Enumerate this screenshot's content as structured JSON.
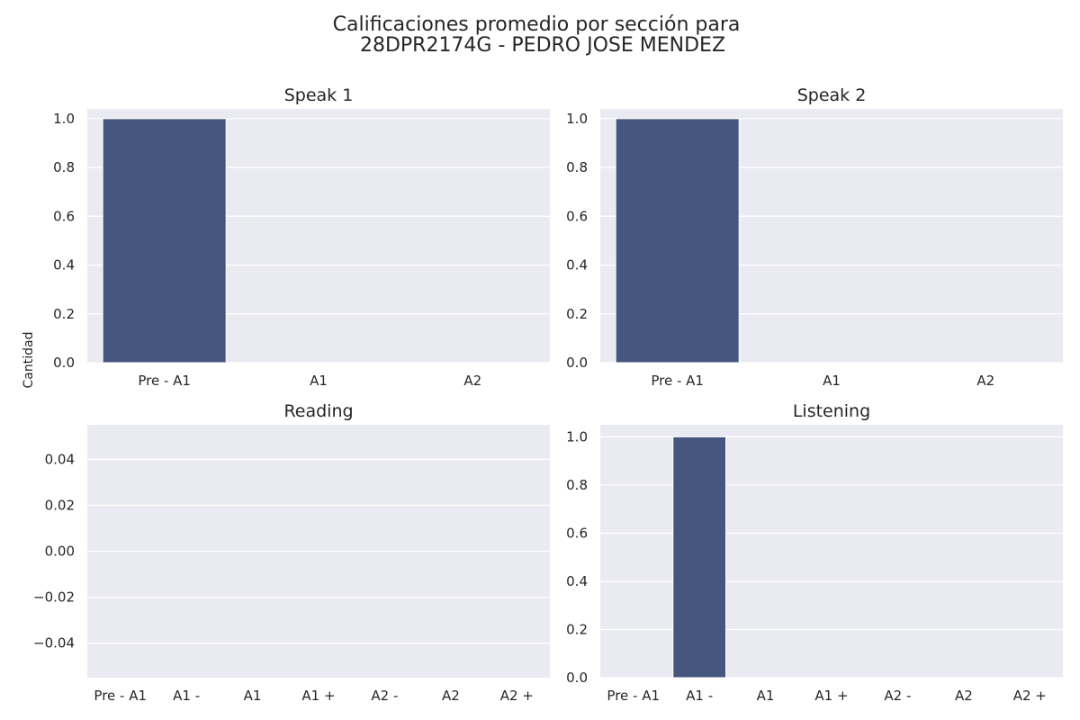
{
  "figure": {
    "title_line1": "Calificaciones promedio por sección para",
    "title_line2": "28DPR2174G - PEDRO JOSE MENDEZ",
    "ylabel": "Cantidad"
  },
  "colors": {
    "background": "#ffffff",
    "plot_area": "#eaeaf2",
    "grid": "#ffffff",
    "bar": "#45577f",
    "text": "#262626"
  },
  "chart_data": [
    {
      "type": "bar",
      "title": "Speak 1",
      "categories": [
        "Pre - A1",
        "A1",
        "A2"
      ],
      "values": [
        1,
        0,
        0
      ],
      "ylim": [
        0,
        1.04
      ],
      "yticks": [
        0.0,
        0.2,
        0.4,
        0.6,
        0.8,
        1.0
      ],
      "ytick_labels": [
        "0.0",
        "0.2",
        "0.4",
        "0.6",
        "0.8",
        "1.0"
      ],
      "grid": true
    },
    {
      "type": "bar",
      "title": "Speak 2",
      "categories": [
        "Pre - A1",
        "A1",
        "A2"
      ],
      "values": [
        1,
        0,
        0
      ],
      "ylim": [
        0,
        1.04
      ],
      "yticks": [
        0.0,
        0.2,
        0.4,
        0.6,
        0.8,
        1.0
      ],
      "ytick_labels": [
        "0.0",
        "0.2",
        "0.4",
        "0.6",
        "0.8",
        "1.0"
      ],
      "grid": true
    },
    {
      "type": "bar",
      "title": "Reading",
      "categories": [
        "Pre - A1",
        "A1 -",
        "A1",
        "A1 +",
        "A2 -",
        "A2",
        "A2 +"
      ],
      "values": [
        0,
        0,
        0,
        0,
        0,
        0,
        0
      ],
      "ylim": [
        -0.055,
        0.055
      ],
      "yticks": [
        -0.04,
        -0.02,
        0.0,
        0.02,
        0.04
      ],
      "ytick_labels": [
        "−0.04",
        "−0.02",
        "0.00",
        "0.02",
        "0.04"
      ],
      "grid": true
    },
    {
      "type": "bar",
      "title": "Listening",
      "categories": [
        "Pre - A1",
        "A1 -",
        "A1",
        "A1 +",
        "A2 -",
        "A2",
        "A2 +"
      ],
      "values": [
        0,
        1,
        0,
        0,
        0,
        0,
        0
      ],
      "ylim": [
        0,
        1.05
      ],
      "yticks": [
        0.0,
        0.2,
        0.4,
        0.6,
        0.8,
        1.0
      ],
      "ytick_labels": [
        "0.0",
        "0.2",
        "0.4",
        "0.6",
        "0.8",
        "1.0"
      ],
      "grid": true
    }
  ]
}
